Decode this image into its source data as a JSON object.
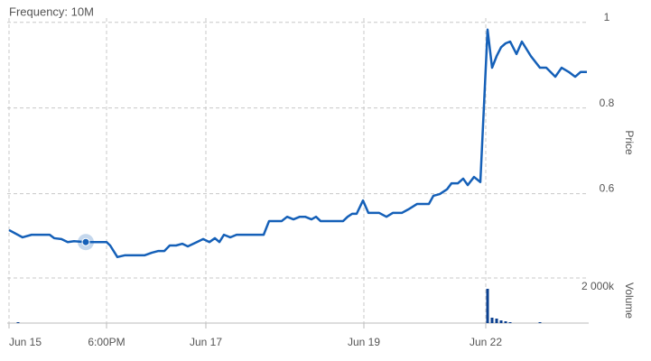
{
  "chart_data": {
    "type": "stock",
    "frequency_label": "Frequency: 10M",
    "y_label": "Price",
    "y2_label": "Volume",
    "xlim": [
      0,
      642
    ],
    "xticks": [
      {
        "value": 0,
        "label": "Jun 15"
      },
      {
        "value": 108,
        "label": "6:00PM"
      },
      {
        "value": 218,
        "label": "Jun 17"
      },
      {
        "value": 393,
        "label": "Jun 19"
      },
      {
        "value": 528,
        "label": "Jun 22"
      }
    ],
    "ylim": [
      0.42,
      1.01
    ],
    "yticks": [
      0.6,
      0.8,
      1
    ],
    "y2lim": [
      0,
      2500000
    ],
    "y2ticks": [
      {
        "value": 2000000,
        "label": "2 000k"
      }
    ],
    "grid": true,
    "series": [
      {
        "type": "line",
        "color": "#1560b8",
        "x": [
          0,
          15,
          25,
          40,
          45,
          50,
          58,
          65,
          72,
          85,
          100,
          108,
          112,
          120,
          128,
          150,
          158,
          165,
          172,
          178,
          185,
          192,
          198,
          208,
          215,
          222,
          228,
          233,
          238,
          245,
          252,
          260,
          282,
          288,
          302,
          308,
          315,
          322,
          328,
          335,
          340,
          345,
          355,
          370,
          375,
          380,
          385,
          392,
          398,
          410,
          418,
          425,
          435,
          442,
          452,
          465,
          470,
          477,
          485,
          490,
          497,
          503,
          508,
          515,
          522,
          530,
          535,
          540,
          545,
          550,
          555,
          562,
          568,
          578,
          588,
          595,
          605,
          612,
          620,
          627,
          633,
          640
        ],
        "values": [
          0.515,
          0.498,
          0.504,
          0.504,
          0.504,
          0.496,
          0.494,
          0.487,
          0.489,
          0.487,
          0.487,
          0.487,
          0.479,
          0.452,
          0.456,
          0.456,
          0.462,
          0.466,
          0.466,
          0.479,
          0.479,
          0.483,
          0.477,
          0.487,
          0.494,
          0.487,
          0.496,
          0.487,
          0.504,
          0.498,
          0.504,
          0.504,
          0.504,
          0.536,
          0.536,
          0.546,
          0.54,
          0.546,
          0.546,
          0.54,
          0.546,
          0.536,
          0.536,
          0.536,
          0.546,
          0.553,
          0.553,
          0.584,
          0.555,
          0.555,
          0.546,
          0.555,
          0.555,
          0.563,
          0.576,
          0.576,
          0.595,
          0.599,
          0.61,
          0.624,
          0.624,
          0.635,
          0.62,
          0.639,
          0.627,
          0.983,
          0.894,
          0.921,
          0.942,
          0.951,
          0.955,
          0.926,
          0.955,
          0.921,
          0.894,
          0.894,
          0.873,
          0.894,
          0.884,
          0.873,
          0.884,
          0.884
        ]
      },
      {
        "type": "bar",
        "axis": "y2",
        "color": "#0a3f8f",
        "x": [
          10,
          530,
          535,
          540,
          545,
          550,
          555,
          588
        ],
        "values": [
          50000,
          1900000,
          300000,
          250000,
          150000,
          100000,
          50000,
          50000
        ]
      }
    ]
  }
}
